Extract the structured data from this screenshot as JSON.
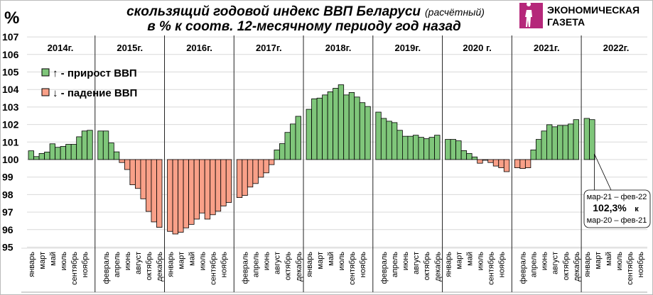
{
  "header": {
    "unit_label": "%",
    "title_line1": "скользящий годовой индекс ВВП Беларуси",
    "title_note": "(расчётный)",
    "title_line2": "в % к соотв. 12-месячному периоду год назад"
  },
  "logo": {
    "line1": "ЭКОНОМИЧЕСКАЯ",
    "line2": "ГАЗЕТА",
    "color": "#b5277a"
  },
  "chart_data": {
    "type": "bar",
    "baseline": 100,
    "ylim": [
      95,
      107
    ],
    "yticks": [
      "95",
      "96",
      "97",
      "98",
      "99",
      "100",
      "101",
      "102",
      "103",
      "104",
      "105",
      "106",
      "107"
    ],
    "grid": true,
    "colors": {
      "growth": "#7fc67a",
      "decline": "#f9a088"
    },
    "legend": {
      "placement": "top-left",
      "growth": "↑ - прирост ВВП",
      "decline": "↓ - падение ВВП"
    },
    "month_labels_odd": [
      "январь",
      "март",
      "май",
      "июль",
      "сентябрь",
      "ноябрь"
    ],
    "month_labels_even": [
      "февраль",
      "апрель",
      "июнь",
      "август",
      "октябрь",
      "декабрь"
    ],
    "years": [
      {
        "label": "2014г.",
        "month_labels": "odd",
        "values": [
          100.5,
          100.17,
          100.35,
          100.43,
          100.9,
          100.7,
          100.75,
          100.87,
          100.87,
          101.3,
          101.63,
          101.67
        ]
      },
      {
        "label": "2015г.",
        "month_labels": "even",
        "values": [
          101.63,
          101.63,
          100.95,
          100.44,
          99.83,
          99.43,
          98.56,
          98.35,
          97.76,
          97.04,
          96.44,
          96.13
        ]
      },
      {
        "label": "2016г.",
        "month_labels": "odd",
        "values": [
          95.9,
          95.75,
          95.85,
          96.1,
          96.3,
          96.6,
          96.95,
          96.6,
          96.85,
          97.05,
          97.35,
          97.55
        ]
      },
      {
        "label": "2017г.",
        "month_labels": "even",
        "values": [
          97.83,
          97.95,
          98.43,
          98.63,
          98.99,
          99.24,
          99.71,
          100.55,
          100.91,
          101.55,
          102.03,
          102.47
        ]
      },
      {
        "label": "2018г.",
        "month_labels": "odd",
        "values": [
          102.87,
          103.47,
          103.51,
          103.69,
          103.87,
          104.07,
          104.27,
          103.69,
          103.83,
          103.57,
          103.25,
          103.03
        ]
      },
      {
        "label": "2019г.",
        "month_labels": "even",
        "values": [
          102.71,
          102.35,
          102.19,
          102.11,
          101.67,
          101.33,
          101.33,
          101.39,
          101.27,
          101.19,
          101.27,
          101.39
        ]
      },
      {
        "label": "2020 г.",
        "month_labels": "odd",
        "values": [
          101.15,
          101.15,
          101.07,
          100.51,
          100.35,
          100.15,
          99.79,
          99.96,
          99.83,
          99.63,
          99.53,
          99.31
        ]
      },
      {
        "label": "2021г.",
        "month_labels": "even",
        "values": [
          99.53,
          99.49,
          99.53,
          100.55,
          101.15,
          101.63,
          101.99,
          101.87,
          101.95,
          101.95,
          102.03,
          102.28
        ]
      },
      {
        "label": "2022г.",
        "month_labels": "odd",
        "values": [
          102.35,
          102.28
        ]
      }
    ],
    "annotation": {
      "line1": "мар-21 – фев-22",
      "value": "102,3%",
      "connector": "к",
      "line3": "мар-20 – фев-21"
    }
  }
}
